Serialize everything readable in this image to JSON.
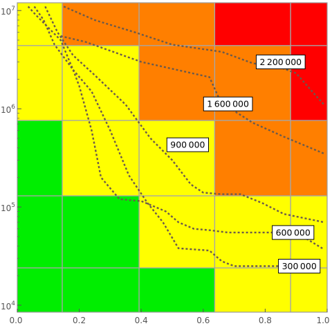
{
  "chart_data": {
    "type": "heatmap",
    "x_ticks": [
      "0.0",
      "0.2",
      "0.4",
      "0.6",
      "0.8",
      "1.0"
    ],
    "x_tick_values": [
      0,
      0.2,
      0.4,
      0.6,
      0.8,
      1.0
    ],
    "xlim": [
      0,
      1
    ],
    "y_ticks": [
      {
        "base": "10",
        "exp": "4",
        "value": 10000
      },
      {
        "base": "10",
        "exp": "5",
        "value": 100000
      },
      {
        "base": "10",
        "exp": "6",
        "value": 1000000
      },
      {
        "base": "10",
        "exp": "7",
        "value": 10000000
      }
    ],
    "ylim": [
      8500,
      12000000
    ],
    "y_scale": "log",
    "grid": true,
    "colors": {
      "green": "#00ee00",
      "yellow": "#ffff00",
      "orange": "#ff7f00",
      "red": "#ff0000"
    },
    "x_bins": [
      0,
      0.145,
      0.393,
      0.637,
      0.882,
      1.0
    ],
    "y_bins": [
      8500,
      24000,
      130000,
      760000,
      4400000,
      12000000
    ],
    "cells": [
      [
        "green",
        "green",
        "green",
        "yellow",
        "yellow"
      ],
      [
        "green",
        "green",
        "yellow",
        "yellow",
        "yellow"
      ],
      [
        "green",
        "yellow",
        "yellow",
        "orange",
        "orange"
      ],
      [
        "yellow",
        "yellow",
        "orange",
        "orange",
        "red"
      ],
      [
        "yellow",
        "orange",
        "orange",
        "red",
        "red"
      ]
    ],
    "contours": [
      {
        "label": "300 000",
        "label_at": [
          0.91,
          25000
        ],
        "points": [
          [
            0.035,
            11000000
          ],
          [
            0.06,
            9000000
          ],
          [
            0.14,
            5000000
          ],
          [
            0.18,
            2500000
          ],
          [
            0.24,
            1500000
          ],
          [
            0.3,
            600000
          ],
          [
            0.36,
            210000
          ],
          [
            0.42,
            110000
          ],
          [
            0.47,
            70000
          ],
          [
            0.52,
            38000
          ],
          [
            0.62,
            36000
          ],
          [
            0.66,
            28000
          ],
          [
            0.7,
            25000
          ],
          [
            0.86,
            25000
          ],
          [
            0.88,
            25000
          ]
        ]
      },
      {
        "label": "600 000",
        "label_at": [
          0.89,
          55000
        ],
        "points": [
          [
            0.055,
            11000000
          ],
          [
            0.085,
            8000000
          ],
          [
            0.12,
            4500000
          ],
          [
            0.18,
            2500000
          ],
          [
            0.2,
            1700000
          ],
          [
            0.24,
            600000
          ],
          [
            0.27,
            200000
          ],
          [
            0.33,
            120000
          ],
          [
            0.4,
            115000
          ],
          [
            0.48,
            90000
          ],
          [
            0.52,
            70000
          ],
          [
            0.57,
            60000
          ],
          [
            0.62,
            58000
          ],
          [
            0.68,
            55000
          ],
          [
            0.9,
            55000
          ],
          [
            0.99,
            37000
          ]
        ]
      },
      {
        "label": "900 000",
        "label_at": [
          0.55,
          430000
        ],
        "points": [
          [
            0.09,
            11000000
          ],
          [
            0.13,
            6000000
          ],
          [
            0.18,
            3500000
          ],
          [
            0.25,
            2200000
          ],
          [
            0.35,
            1100000
          ],
          [
            0.43,
            500000
          ],
          [
            0.5,
            300000
          ],
          [
            0.56,
            170000
          ],
          [
            0.6,
            140000
          ],
          [
            0.66,
            135000
          ],
          [
            0.72,
            135000
          ],
          [
            0.79,
            110000
          ],
          [
            0.86,
            85000
          ],
          [
            0.99,
            70000
          ]
        ]
      },
      {
        "label": "1 600 000",
        "label_at": [
          0.68,
          1120000
        ],
        "points": [
          [
            0.14,
            5500000
          ],
          [
            0.22,
            4800000
          ],
          [
            0.4,
            3000000
          ],
          [
            0.62,
            2100000
          ],
          [
            0.65,
            1300000
          ],
          [
            0.7,
            950000
          ],
          [
            0.76,
            720000
          ],
          [
            0.86,
            520000
          ],
          [
            0.99,
            350000
          ]
        ]
      },
      {
        "label": "2 200 000",
        "label_at": [
          0.85,
          3000000
        ],
        "points": [
          [
            0.15,
            11000000
          ],
          [
            0.25,
            8000000
          ],
          [
            0.38,
            6000000
          ],
          [
            0.5,
            4500000
          ],
          [
            0.66,
            3800000
          ],
          [
            0.76,
            2900000
          ],
          [
            0.84,
            2700000
          ],
          [
            0.9,
            2300000
          ],
          [
            0.96,
            1400000
          ],
          [
            0.99,
            1100000
          ]
        ]
      }
    ]
  }
}
